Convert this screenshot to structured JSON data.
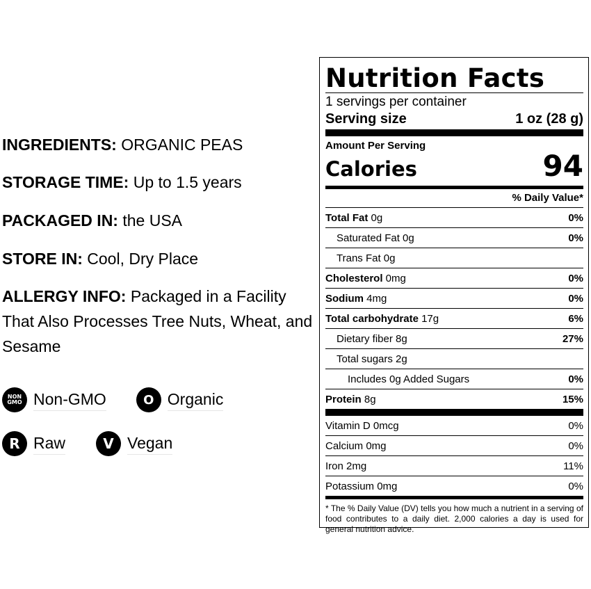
{
  "info": {
    "ingredients_label": "INGREDIENTS:",
    "ingredients_value": " ORGANIC PEAS",
    "storage_label": "STORAGE TIME:",
    "storage_value": " Up to 1.5 years",
    "packaged_label": "PACKAGED IN:",
    "packaged_value": " the USA",
    "store_label": "STORE IN:",
    "store_value": " Cool, Dry Place",
    "allergy_label": "ALLERGY INFO:",
    "allergy_value": " Packaged in a Facility That Also Processes Tree Nuts, Wheat, and Sesame"
  },
  "badges": [
    {
      "icon": "non-gmo-icon",
      "icon_text_1": "NON",
      "icon_text_2": "GMO",
      "label": "Non-GMO"
    },
    {
      "icon": "organic-icon",
      "icon_text": "O",
      "label": "Organic"
    },
    {
      "icon": "raw-icon",
      "icon_text": "R",
      "label": "Raw"
    },
    {
      "icon": "vegan-icon",
      "icon_text": "V",
      "label": "Vegan"
    }
  ],
  "nutrition": {
    "title": "Nutrition Facts",
    "servings_per_container": "1 servings per container",
    "serving_size_label": "Serving size",
    "serving_size_value": "1 oz (28 g)",
    "amount_per_serving": "Amount Per Serving",
    "calories_label": "Calories",
    "calories_value": "94",
    "dv_header": "% Daily Value*",
    "nutrients": [
      {
        "name": "Total Fat",
        "amount": " 0g",
        "dv": "0%"
      },
      {
        "name": "Saturated Fat 0g",
        "dv": "0%"
      },
      {
        "name": "Trans Fat 0g",
        "dv": ""
      },
      {
        "name": "Cholesterol",
        "amount": " 0mg",
        "dv": "0%"
      },
      {
        "name": "Sodium",
        "amount": " 4mg",
        "dv": "0%"
      },
      {
        "name": "Total carbohydrate",
        "amount": " 17g",
        "dv": "6%"
      },
      {
        "name": "Dietary fiber 8g",
        "dv": "27%"
      },
      {
        "name": "Total sugars 2g",
        "dv": ""
      },
      {
        "name": "Includes 0g Added Sugars",
        "dv": "0%"
      },
      {
        "name": "Protein",
        "amount": " 8g",
        "dv": "15%"
      }
    ],
    "vitamins": [
      {
        "name": "Vitamin D 0mcg",
        "dv": "0%"
      },
      {
        "name": "Calcium 0mg",
        "dv": "0%"
      },
      {
        "name": "Iron 2mg",
        "dv": "11%"
      },
      {
        "name": "Potassium 0mg",
        "dv": "0%"
      }
    ],
    "footnote": "* The % Daily Value (DV) tells you how much a nutrient in a serving of food contributes to a daily diet. 2,000 calories a day is used for general nutrition advice."
  }
}
